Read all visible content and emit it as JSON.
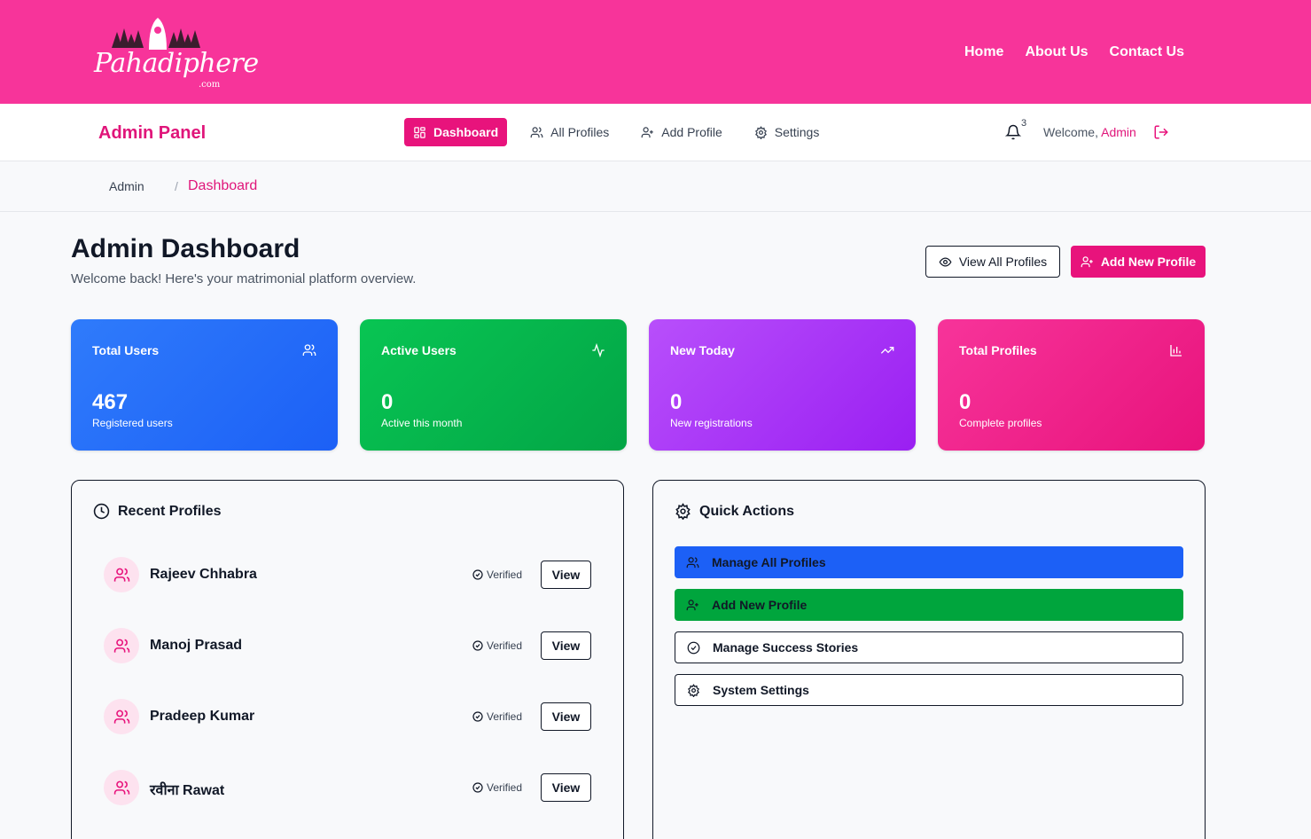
{
  "brand": {
    "name": "Pahadiphere",
    "suffix": ".com"
  },
  "top_nav": {
    "home": "Home",
    "about": "About Us",
    "contact": "Contact Us"
  },
  "admin_bar": {
    "title": "Admin Panel",
    "tabs": [
      {
        "label": "Dashboard",
        "icon": "grid-icon",
        "active": true
      },
      {
        "label": "All Profiles",
        "icon": "users-icon",
        "active": false
      },
      {
        "label": "Add Profile",
        "icon": "user-plus-icon",
        "active": false
      },
      {
        "label": "Settings",
        "icon": "gear-icon",
        "active": false
      }
    ],
    "notification_count": "3",
    "welcome_prefix": "Welcome,",
    "user_name": "Admin"
  },
  "breadcrumb": {
    "root": "Admin",
    "separator": "/",
    "current": "Dashboard"
  },
  "header": {
    "title": "Admin Dashboard",
    "subtitle": "Welcome back! Here's your matrimonial platform overview.",
    "view_all_label": "View All Profiles",
    "add_new_label": "Add New Profile"
  },
  "stats": [
    {
      "label": "Total Users",
      "value": "467",
      "desc": "Registered users",
      "icon": "users-icon"
    },
    {
      "label": "Active Users",
      "value": "0",
      "desc": "Active this month",
      "icon": "activity-icon"
    },
    {
      "label": "New Today",
      "value": "0",
      "desc": "New registrations",
      "icon": "trending-up-icon"
    },
    {
      "label": "Total Profiles",
      "value": "0",
      "desc": "Complete profiles",
      "icon": "bar-chart-icon"
    }
  ],
  "recent_profiles": {
    "title": "Recent Profiles",
    "items": [
      {
        "name": "Rajeev Chhabra",
        "status": "Verified",
        "action": "View"
      },
      {
        "name": "Manoj Prasad",
        "status": "Verified",
        "action": "View"
      },
      {
        "name": "Pradeep Kumar",
        "status": "Verified",
        "action": "View"
      },
      {
        "name": "रवीना Rawat",
        "status": "Verified",
        "action": "View"
      }
    ]
  },
  "quick_actions": {
    "title": "Quick Actions",
    "items": [
      {
        "label": "Manage All Profiles",
        "icon": "users-icon"
      },
      {
        "label": "Add New Profile",
        "icon": "user-plus-icon"
      },
      {
        "label": "Manage Success Stories",
        "icon": "check-circle-icon"
      },
      {
        "label": "System Settings",
        "icon": "gear-icon"
      }
    ]
  },
  "colors": {
    "brand_pink": "#f7349a",
    "accent_pink": "#e8137c",
    "blue": "#1c60f6",
    "green": "#00a53d",
    "purple": "#9a1ff2"
  }
}
